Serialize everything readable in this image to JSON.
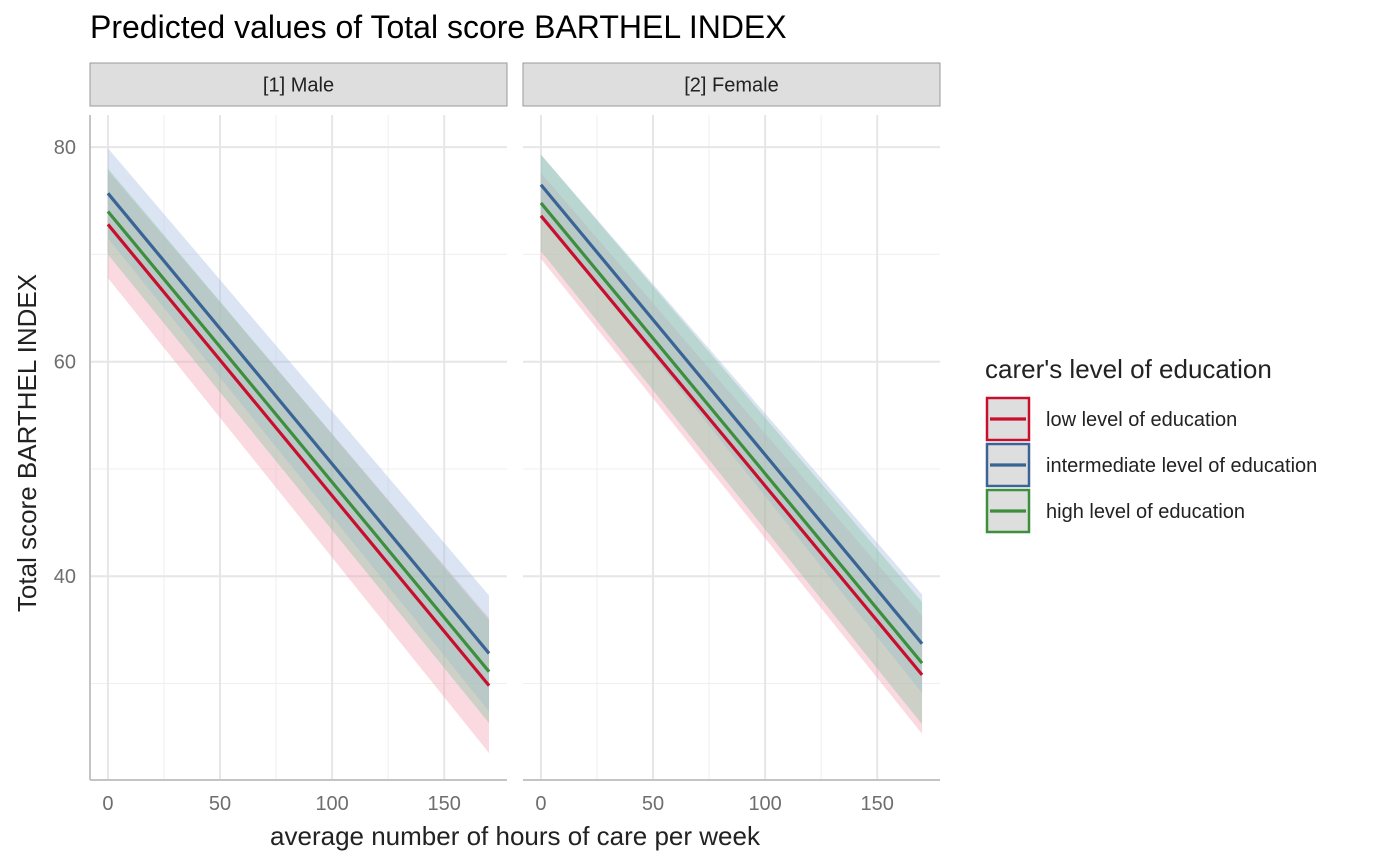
{
  "chart_data": {
    "type": "line",
    "title": "Predicted values of Total score BARTHEL INDEX",
    "xlabel": "average number of hours of care per week",
    "ylabel": "Total score BARTHEL INDEX",
    "xlim": [
      -8,
      178
    ],
    "ylim": [
      21,
      83
    ],
    "x_ticks": [
      0,
      50,
      100,
      150
    ],
    "y_ticks": [
      40,
      60,
      80
    ],
    "x_minor": [
      25,
      75,
      125
    ],
    "y_minor": [
      30,
      50,
      70
    ],
    "grid": true,
    "legend": {
      "title": "carer's level of education",
      "position": "right",
      "entries": [
        "low level of education",
        "intermediate level of education",
        "high level of education"
      ]
    },
    "facets": [
      {
        "label": "[1] Male",
        "series": [
          {
            "name": "low level of education",
            "color": "#c8102e",
            "fill": "#f4a7b4",
            "x": [
              0,
              170
            ],
            "y": [
              72.8,
              29.8
            ],
            "lower": [
              67.8,
              23.5
            ],
            "upper": [
              77.8,
              36.1
            ]
          },
          {
            "name": "intermediate level of education",
            "color": "#3a6496",
            "fill": "#a9bfdf",
            "x": [
              0,
              170
            ],
            "y": [
              75.7,
              32.8
            ],
            "lower": [
              71.5,
              27.4
            ],
            "upper": [
              79.9,
              38.2
            ]
          },
          {
            "name": "high level of education",
            "color": "#3d8f3d",
            "fill": "#8cc4a4",
            "x": [
              0,
              170
            ],
            "y": [
              74.0,
              31.1
            ],
            "lower": [
              70.0,
              26.3
            ],
            "upper": [
              78.0,
              35.9
            ]
          }
        ]
      },
      {
        "label": "[2] Female",
        "series": [
          {
            "name": "low level of education",
            "color": "#c8102e",
            "fill": "#f4a7b4",
            "x": [
              0,
              170
            ],
            "y": [
              73.6,
              30.8
            ],
            "lower": [
              69.6,
              25.3
            ],
            "upper": [
              77.6,
              36.3
            ]
          },
          {
            "name": "intermediate level of education",
            "color": "#3a6496",
            "fill": "#a9bfdf",
            "x": [
              0,
              170
            ],
            "y": [
              76.5,
              33.7
            ],
            "lower": [
              73.7,
              29.1
            ],
            "upper": [
              79.3,
              38.3
            ]
          },
          {
            "name": "high level of education",
            "color": "#3d8f3d",
            "fill": "#8cc4a4",
            "x": [
              0,
              170
            ],
            "y": [
              74.8,
              31.9
            ],
            "lower": [
              70.3,
              26.2
            ],
            "upper": [
              79.3,
              37.6
            ]
          }
        ]
      }
    ]
  }
}
